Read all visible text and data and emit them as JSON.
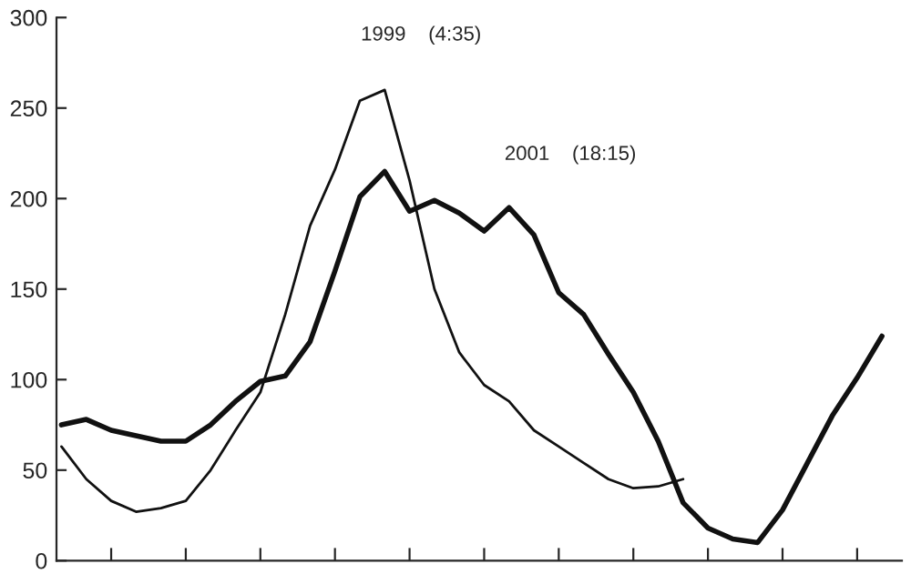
{
  "chart_data": {
    "type": "line",
    "categories": [
      null,
      null,
      null,
      null,
      null,
      null,
      null,
      null,
      null,
      null,
      null,
      null,
      null,
      null,
      null,
      null,
      null,
      null,
      null,
      null,
      null,
      null,
      null,
      null,
      null,
      null,
      null,
      null,
      null,
      null,
      null,
      null,
      null,
      null
    ],
    "series": [
      {
        "color": "#111111",
        "values": [
          75,
          78,
          72,
          69,
          66,
          66,
          75,
          88,
          99,
          102,
          121,
          160,
          201,
          215,
          193,
          199,
          192,
          182,
          195,
          180,
          148,
          136,
          114,
          93,
          66,
          32,
          18,
          12,
          10,
          28,
          54,
          80,
          101,
          124
        ]
      },
      {
        "color": "#111111",
        "values": [
          63,
          45,
          33,
          27,
          29,
          33,
          50,
          72,
          93,
          136,
          185,
          216,
          254,
          260,
          210,
          150,
          115,
          97,
          88,
          72,
          63,
          54,
          45,
          40,
          41,
          45,
          null,
          null,
          null,
          null,
          null,
          null,
          null,
          null
        ]
      }
    ],
    "ylim": [
      0,
      300
    ],
    "yticks": [
      0,
      50,
      100,
      150,
      200,
      250,
      300
    ],
    "grid": false,
    "legend": false,
    "marker": "none",
    "line_style": "solid",
    "annotations": [
      "1999    (4:35)",
      "2001    (18:15)"
    ]
  }
}
